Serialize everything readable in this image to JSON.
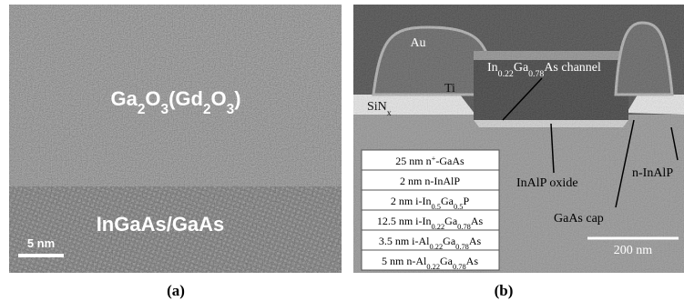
{
  "panel_a": {
    "layer_top": [
      "Ga",
      "2",
      "O",
      "3",
      "(Gd",
      "2",
      "O",
      "3",
      ")"
    ],
    "layer_bottom": "InGaAs/GaAs",
    "scale_bar": "5 nm",
    "caption": "(a)"
  },
  "panel_b": {
    "labels": {
      "au": "Au",
      "channel": [
        "In",
        "0.22",
        "Ga",
        "0.78",
        "As channel"
      ],
      "ti": "Ti",
      "sinx": [
        "SiN",
        "x"
      ],
      "inalp_oxide": "InAlP oxide",
      "n_inalp": "n-InAlP",
      "gaas_cap": "GaAs cap"
    },
    "scale_bar": "200 nm",
    "layers": [
      [
        "25 nm n",
        "+",
        "-GaAs"
      ],
      [
        "2 nm n-InAlP"
      ],
      [
        "2 nm i-In",
        "0.5",
        "Ga",
        "0.5",
        "P"
      ],
      [
        "12.5 nm i-In",
        "0.22",
        "Ga",
        "0.78",
        "As"
      ],
      [
        "3.5 nm i-Al",
        "0.22",
        "Ga",
        "0.78",
        "As"
      ],
      [
        "5 nm n-Al",
        "0.22",
        "Ga",
        "0.78",
        "As"
      ]
    ],
    "caption": "(b)"
  }
}
